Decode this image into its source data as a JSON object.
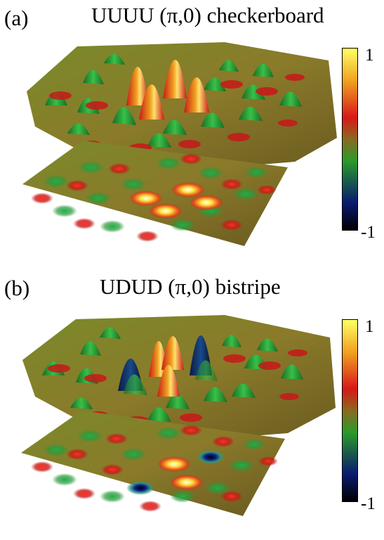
{
  "panels": [
    {
      "letter": "(a)",
      "title": "UUUU (π,0) checkerboard",
      "colorbar": {
        "max_label": "1",
        "min_label": "-1"
      }
    },
    {
      "letter": "(b)",
      "title": "UDUD (π,0) bistripe",
      "colorbar": {
        "max_label": "1",
        "min_label": "-1"
      }
    }
  ],
  "colors": {
    "max": "#ffff66",
    "high": "#f0a020",
    "mid_high": "#d81818",
    "mid": "#2a9a2a",
    "low": "#0a1a70",
    "min": "#000000",
    "background_surface": "#8a7a2a"
  }
}
